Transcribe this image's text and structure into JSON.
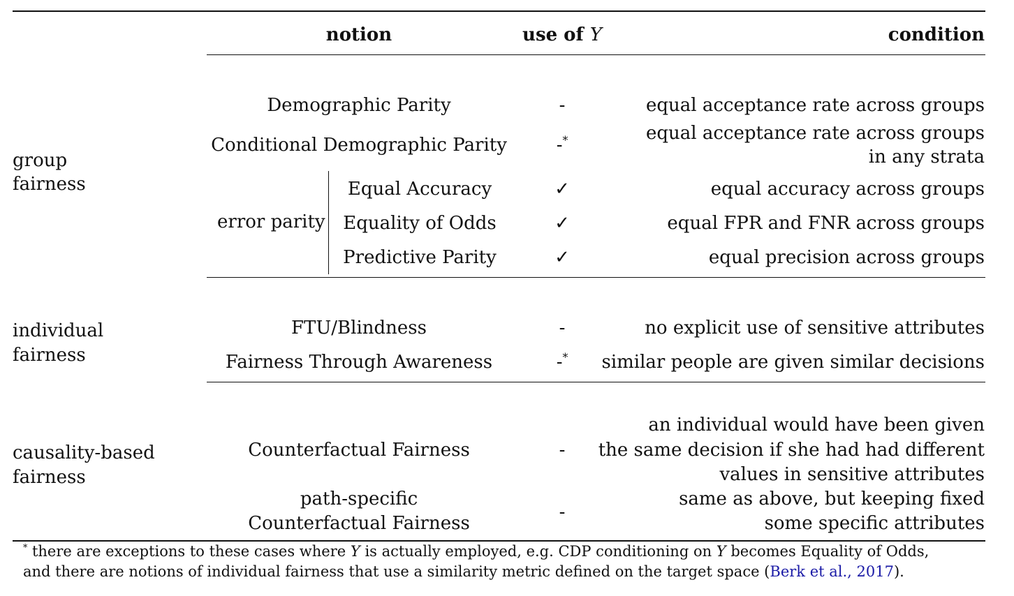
{
  "header": {
    "notion": "notion",
    "use_of_y_prefix": "use of",
    "use_of_y_var": "Y",
    "condition": "condition"
  },
  "groups": {
    "group": {
      "line1": "group",
      "line2": "fairness"
    },
    "individual": {
      "line1": "individual",
      "line2": "fairness"
    },
    "causality": {
      "line1": "causality-based",
      "line2": "fairness"
    }
  },
  "rows": {
    "dp": {
      "notion": "Demographic Parity",
      "use": "-",
      "condition": "equal acceptance rate across groups"
    },
    "cdp": {
      "notion": "Conditional Demographic Parity",
      "use": "-",
      "use_mark": "*",
      "condition_line1": "equal acceptance rate across groups",
      "condition_line2": "in any strata"
    },
    "error_parity_label": "error parity",
    "ea": {
      "notion": "Equal Accuracy",
      "use": "✓",
      "condition": "equal accuracy across groups"
    },
    "eo": {
      "notion": "Equality of Odds",
      "use": "✓",
      "condition": "equal FPR and FNR across groups"
    },
    "pp": {
      "notion": "Predictive Parity",
      "use": "✓",
      "condition": "equal precision across groups"
    },
    "ftu": {
      "notion": "FTU/Blindness",
      "use": "-",
      "condition": "no explicit use of sensitive attributes"
    },
    "fta": {
      "notion": "Fairness Through Awareness",
      "use": "-",
      "use_mark": "*",
      "condition": "similar people are given similar decisions"
    },
    "cf": {
      "notion": "Counterfactual Fairness",
      "use": "-",
      "condition_line1": "an individual would have been given",
      "condition_line2": "the same decision if she had had different",
      "condition_line3": "values in sensitive attributes"
    },
    "pscf": {
      "notion_line1": "path-specific",
      "notion_line2": "Counterfactual Fairness",
      "use": "-",
      "condition_line1": "same as above, but keeping fixed",
      "condition_line2": "some specific attributes"
    }
  },
  "footnote": {
    "mark": "*",
    "line1_a": " there are exceptions to these cases where ",
    "line1_var1": "Y",
    "line1_b": " is actually employed, e.g. CDP conditioning on ",
    "line1_var2": "Y",
    "line1_c": " becomes Equality of Odds,",
    "line2_a": "and there are notions of individual fairness that use a similarity metric defined on the target space (",
    "cite_text": "Berk et al., 2017",
    "line2_b": ")."
  }
}
